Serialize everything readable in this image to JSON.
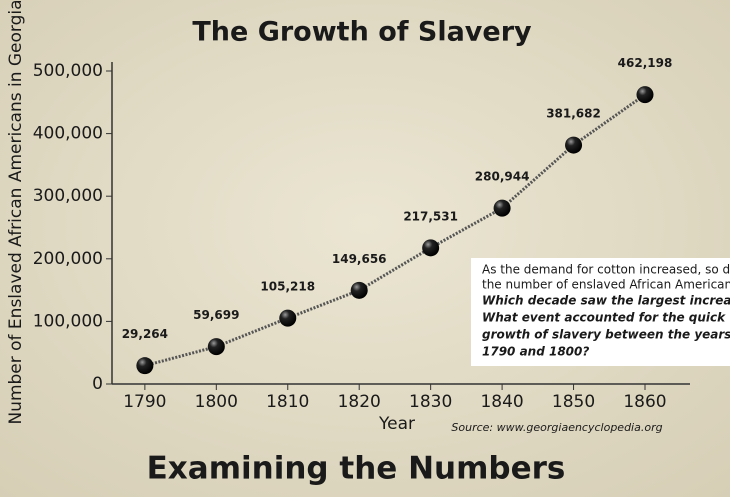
{
  "chart_data": {
    "type": "line",
    "title": "The Growth of Slavery",
    "y_label": "Number of Enslaved African Americans in Georgia",
    "x_label": "Year",
    "source": "Source: www.georgiaencyclopedia.org",
    "heading": "Examining the Numbers",
    "annotation": {
      "text": [
        "As the demand for cotton increased, so did",
        "the number of enslaved African Americans."
      ],
      "questions": [
        "Which decade saw the largest increase?",
        "What event accounted for the quick",
        "growth of slavery between the years",
        "1790 and 1800?"
      ]
    },
    "x": [
      1790,
      1800,
      1810,
      1820,
      1830,
      1840,
      1850,
      1860
    ],
    "values": [
      29264,
      59699,
      105218,
      149656,
      217531,
      280944,
      381682,
      462198
    ],
    "value_labels": [
      "29,264",
      "59,699",
      "105,218",
      "149,656",
      "217,531",
      "280,944",
      "381,682",
      "462,198"
    ],
    "color": "#555555",
    "xlim": [
      1785.4,
      1866.3
    ],
    "xticks": [
      1790,
      1800,
      1810,
      1820,
      1830,
      1840,
      1850,
      1860
    ],
    "ylim": [
      0,
      500000
    ],
    "yticks": [
      0,
      {
        "value": 100000,
        "label": "100,000"
      },
      {
        "value": 200000,
        "label": "200,000"
      },
      {
        "value": 300000,
        "label": "300,000"
      },
      {
        "value": 400000,
        "label": "400,000"
      },
      {
        "value": 500000,
        "label": "500,000"
      }
    ]
  }
}
